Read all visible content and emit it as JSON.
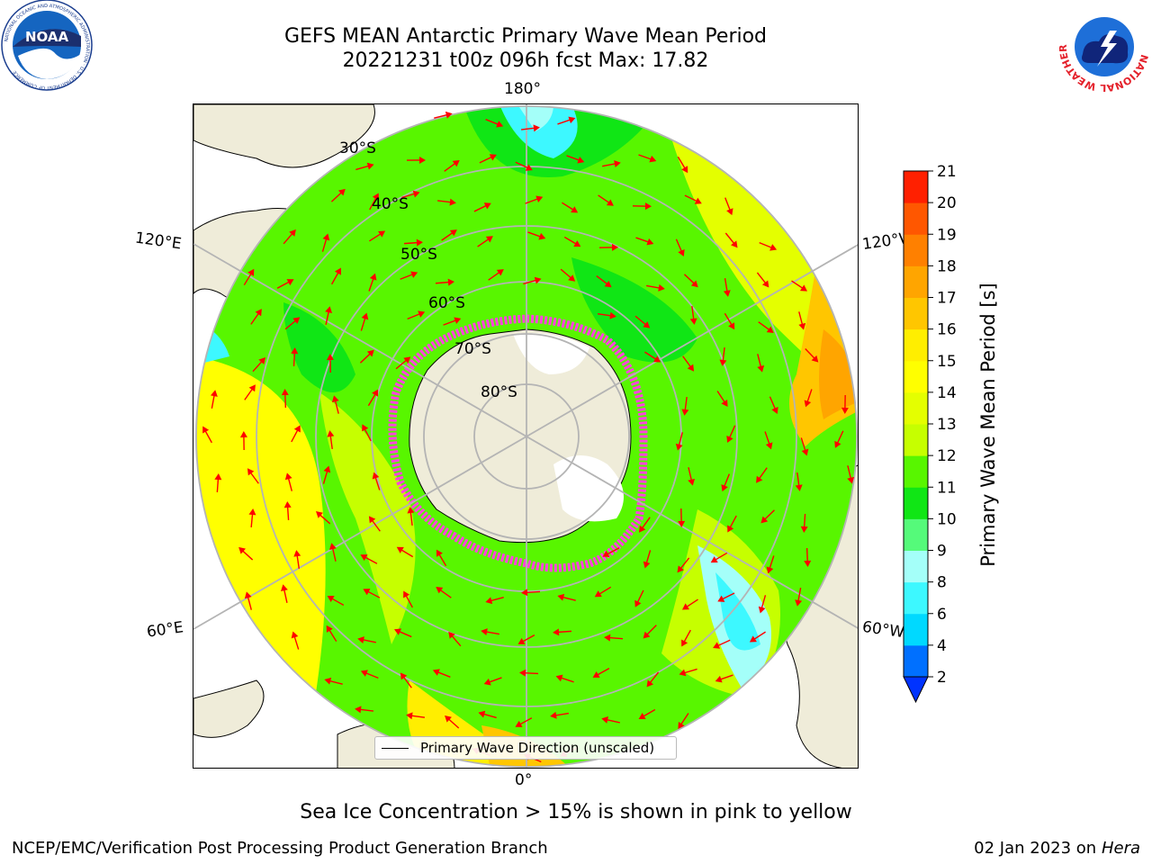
{
  "header": {
    "title_line1": "GEFS MEAN Antarctic Primary Wave Mean Period",
    "title_line2": "20221231 t00z 096h fcst   Max: 17.82"
  },
  "logos": {
    "noaa_text": "NOAA",
    "noaa_ring_text": "NATIONAL OCEANIC AND ATMOSPHERIC ADMINISTRATION · U.S. DEPARTMENT OF COMMERCE",
    "nws_ring_text": "NATIONAL WEATHER SERVICE"
  },
  "map": {
    "projection": "south-polar-stereographic",
    "lon_labels": {
      "top": "180°",
      "bottom": "0°",
      "upper_left": "120°E",
      "upper_right": "120°W",
      "lower_left": "60°E",
      "lower_right": "60°W"
    },
    "lat_labels": [
      "30°S",
      "40°S",
      "50°S",
      "60°S",
      "70°S",
      "80°S"
    ],
    "legend_label": "Primary Wave Direction (unscaled)",
    "colors": {
      "land": "#efecd9",
      "ice": "#ff44dd",
      "vector": "#ff0000",
      "grid": "#b4b4b4"
    }
  },
  "colorbar": {
    "label": "Primary Wave Mean Period [s]",
    "tick_labels": [
      "2",
      "4",
      "6",
      "8",
      "9",
      "10",
      "11",
      "12",
      "13",
      "14",
      "15",
      "16",
      "17",
      "18",
      "19",
      "20",
      "21"
    ],
    "colors": [
      "#0070ff",
      "#00d9ff",
      "#3df8ff",
      "#a4fff9",
      "#55fa7a",
      "#10e615",
      "#58f600",
      "#c6ff00",
      "#e4ff00",
      "#ffff00",
      "#ffee00",
      "#ffc600",
      "#ffa500",
      "#ff8000",
      "#ff5700",
      "#ff2000"
    ],
    "extend_color": "#0033ff"
  },
  "footer": {
    "ice_note": "Sea Ice Concentration > 15% is shown in pink to yellow",
    "left": "NCEP/EMC/Verification Post Processing Product Generation Branch",
    "right_date": "02 Jan 2023 on",
    "right_host": "Hera"
  }
}
